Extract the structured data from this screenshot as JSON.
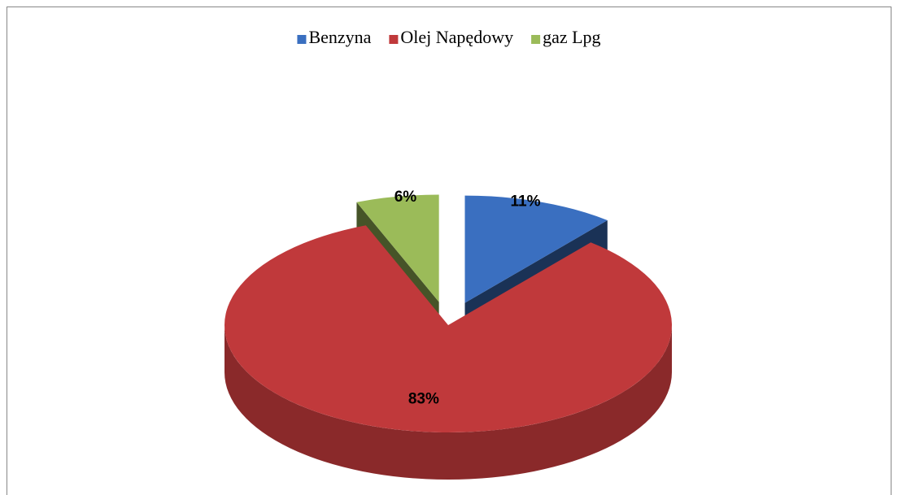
{
  "chart_data": {
    "type": "pie",
    "categories": [
      "Benzyna",
      "Olej Napędowy",
      "gaz Lpg"
    ],
    "values": [
      11,
      83,
      6
    ],
    "value_labels": [
      "11%",
      "83%",
      "6%"
    ],
    "colors": [
      "#3a6fc0",
      "#c0393b",
      "#9bbb59"
    ],
    "legend": "top"
  }
}
